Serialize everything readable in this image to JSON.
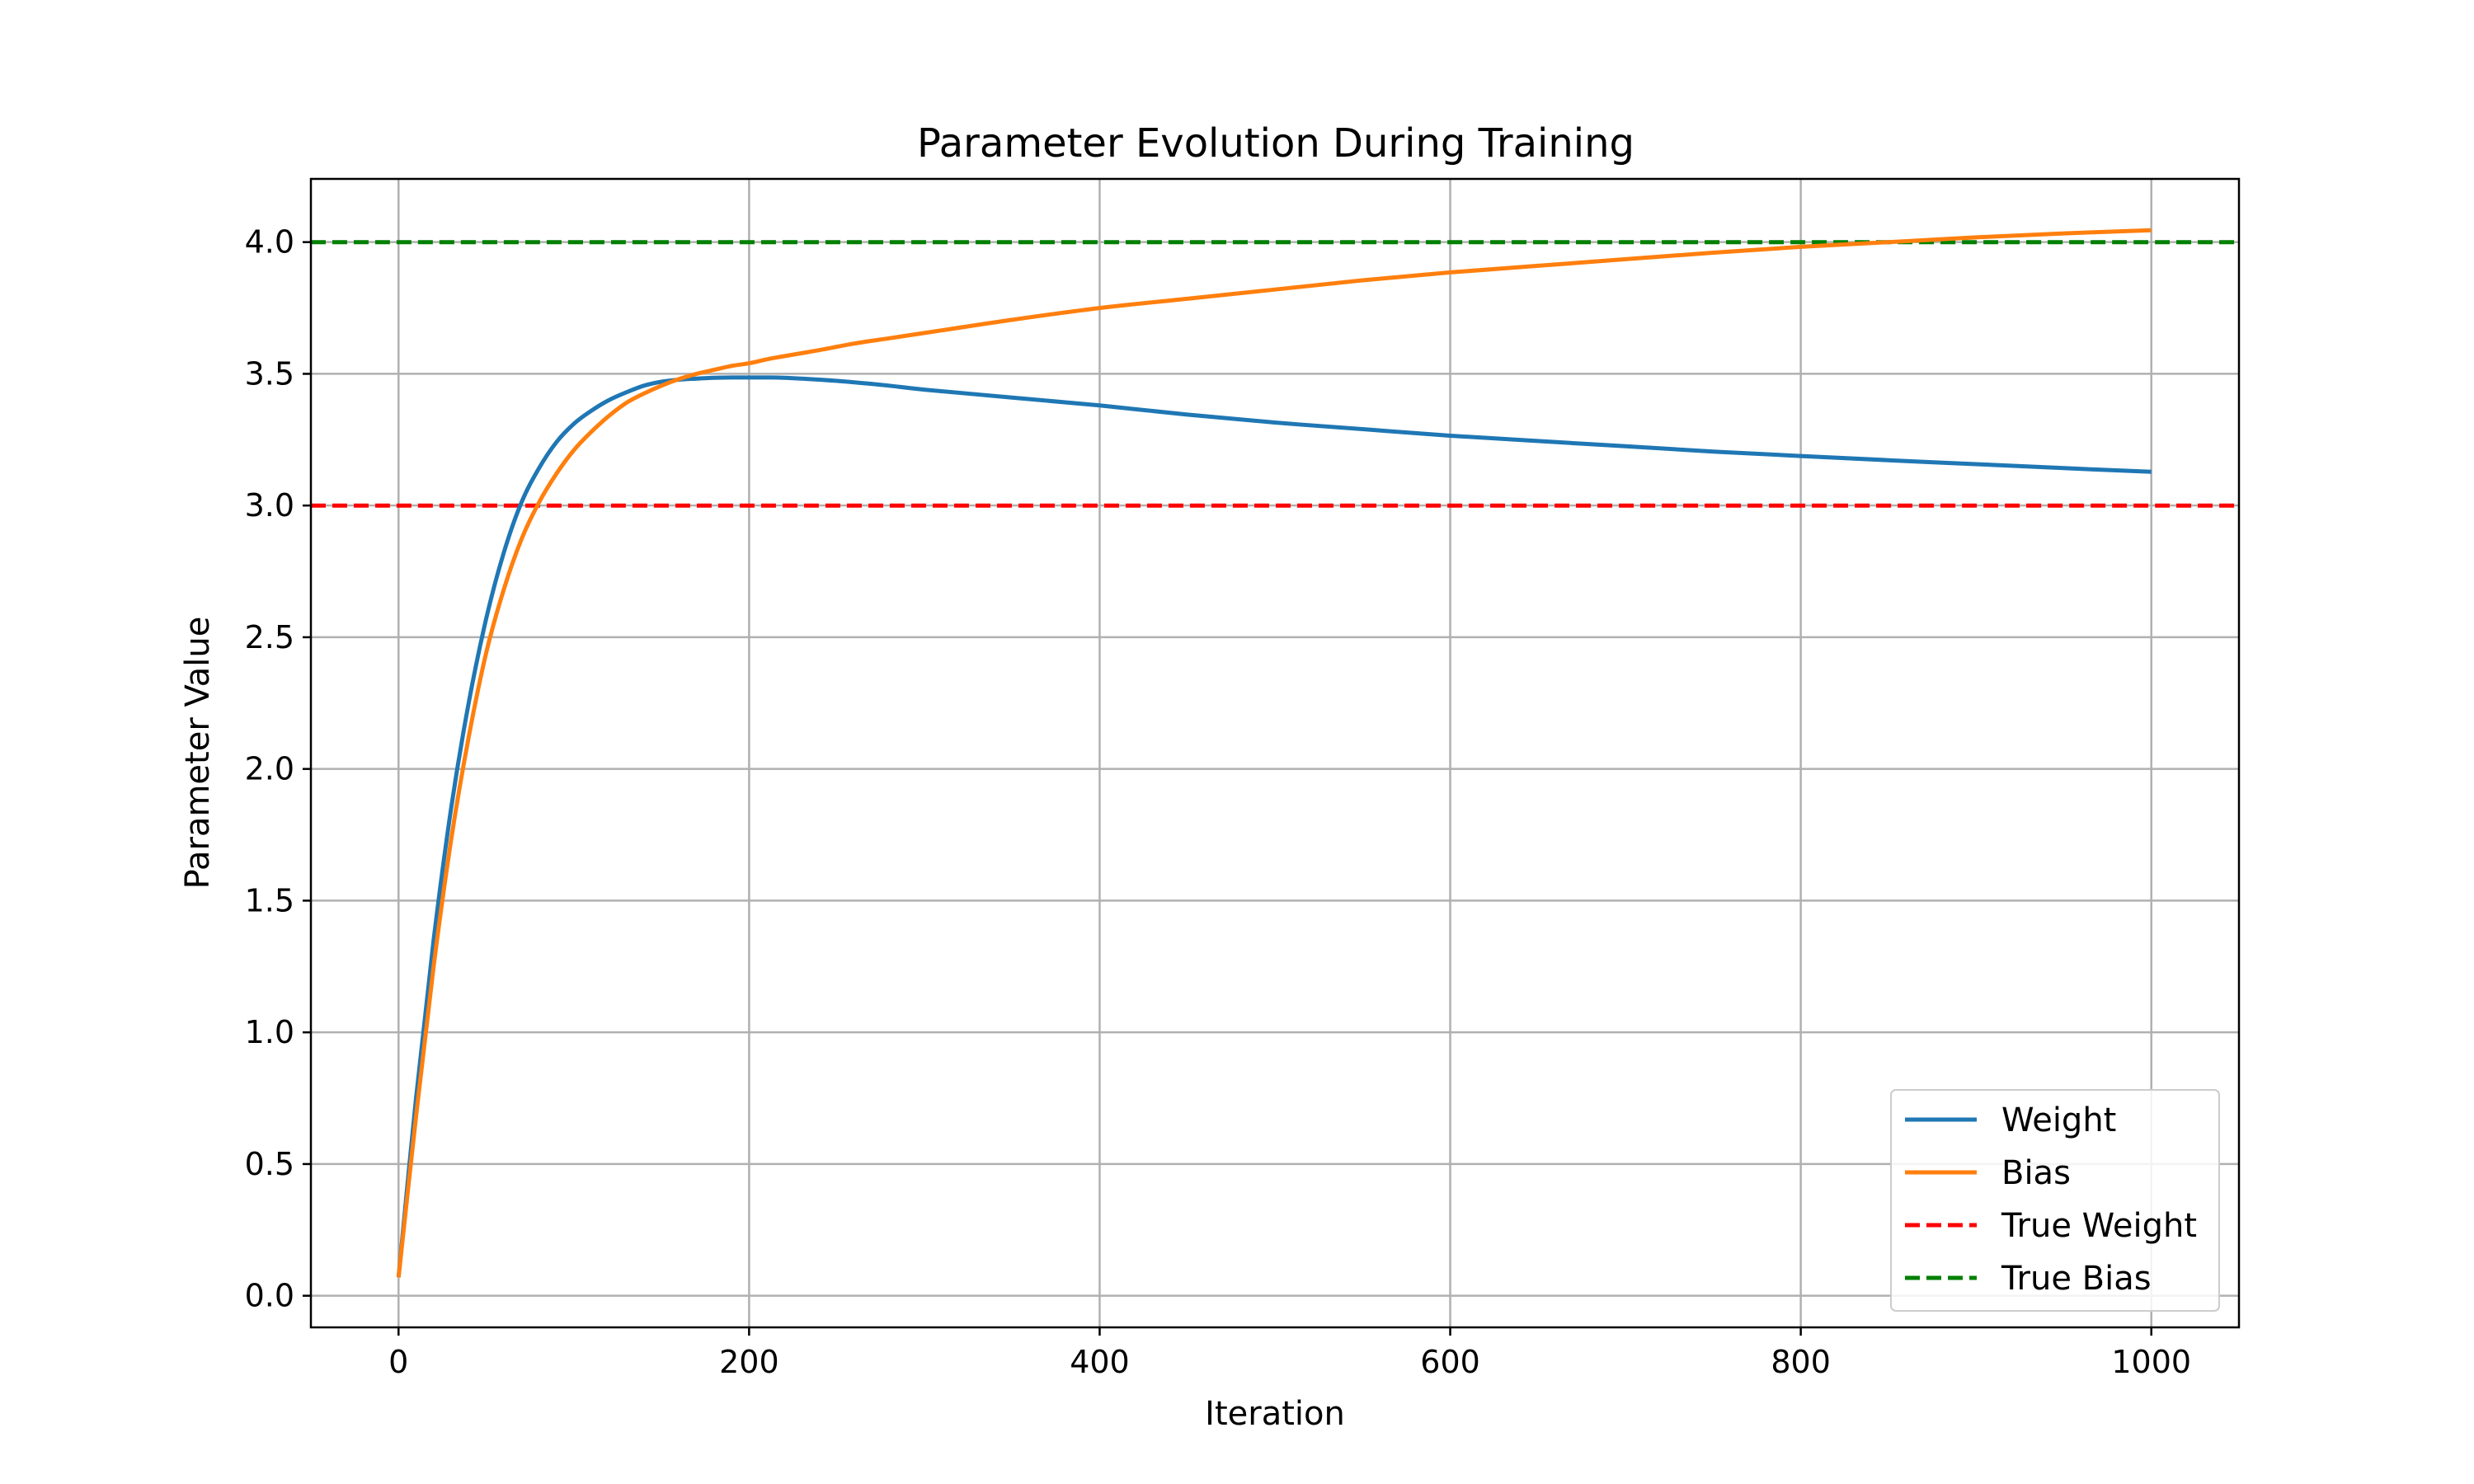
{
  "chart_data": {
    "type": "line",
    "title": "Parameter Evolution During Training",
    "xlabel": "Iteration",
    "ylabel": "Parameter Value",
    "xlim": [
      -50,
      1050
    ],
    "ylim": [
      -0.12,
      4.24
    ],
    "xticks": [
      0,
      200,
      400,
      600,
      800,
      1000
    ],
    "xtick_labels": [
      "0",
      "200",
      "400",
      "600",
      "800",
      "1000"
    ],
    "yticks": [
      0.0,
      0.5,
      1.0,
      1.5,
      2.0,
      2.5,
      3.0,
      3.5,
      4.0
    ],
    "ytick_labels": [
      "0.0",
      "0.5",
      "1.0",
      "1.5",
      "2.0",
      "2.5",
      "3.0",
      "3.5",
      "4.0"
    ],
    "grid": true,
    "legend_position": "bottom-right",
    "series": [
      {
        "name": "Weight",
        "color": "#1f77b4",
        "style": "solid",
        "x": [
          0,
          10,
          20,
          30,
          40,
          50,
          60,
          70,
          80,
          90,
          100,
          110,
          120,
          130,
          140,
          150,
          160,
          170,
          180,
          190,
          200,
          210,
          220,
          240,
          260,
          280,
          300,
          350,
          400,
          450,
          500,
          550,
          600,
          650,
          700,
          750,
          800,
          850,
          900,
          950,
          1000
        ],
        "y": [
          0.07,
          0.75,
          1.35,
          1.85,
          2.25,
          2.57,
          2.82,
          3.01,
          3.14,
          3.24,
          3.31,
          3.36,
          3.4,
          3.43,
          3.455,
          3.47,
          3.478,
          3.482,
          3.485,
          3.486,
          3.486,
          3.486,
          3.485,
          3.478,
          3.468,
          3.455,
          3.44,
          3.41,
          3.38,
          3.345,
          3.315,
          3.29,
          3.265,
          3.245,
          3.225,
          3.205,
          3.188,
          3.172,
          3.157,
          3.142,
          3.128
        ]
      },
      {
        "name": "Bias",
        "color": "#ff7f0e",
        "style": "solid",
        "x": [
          0,
          10,
          20,
          30,
          40,
          50,
          60,
          70,
          80,
          90,
          100,
          110,
          120,
          130,
          140,
          150,
          160,
          170,
          180,
          190,
          200,
          210,
          220,
          240,
          260,
          280,
          300,
          350,
          400,
          450,
          500,
          550,
          600,
          650,
          700,
          750,
          800,
          850,
          900,
          950,
          1000
        ],
        "y": [
          0.07,
          0.68,
          1.25,
          1.73,
          2.12,
          2.44,
          2.68,
          2.87,
          3.01,
          3.12,
          3.21,
          3.28,
          3.34,
          3.39,
          3.425,
          3.455,
          3.48,
          3.5,
          3.515,
          3.53,
          3.54,
          3.555,
          3.567,
          3.59,
          3.615,
          3.635,
          3.655,
          3.705,
          3.75,
          3.785,
          3.82,
          3.855,
          3.885,
          3.91,
          3.935,
          3.96,
          3.982,
          4.0,
          4.018,
          4.033,
          4.045
        ]
      },
      {
        "name": "True Weight",
        "color": "#ff0000",
        "style": "dashed",
        "x": [
          -50,
          1050
        ],
        "y": [
          3.0,
          3.0
        ]
      },
      {
        "name": "True Bias",
        "color": "#008000",
        "style": "dashed",
        "x": [
          -50,
          1050
        ],
        "y": [
          4.0,
          4.0
        ]
      }
    ]
  }
}
